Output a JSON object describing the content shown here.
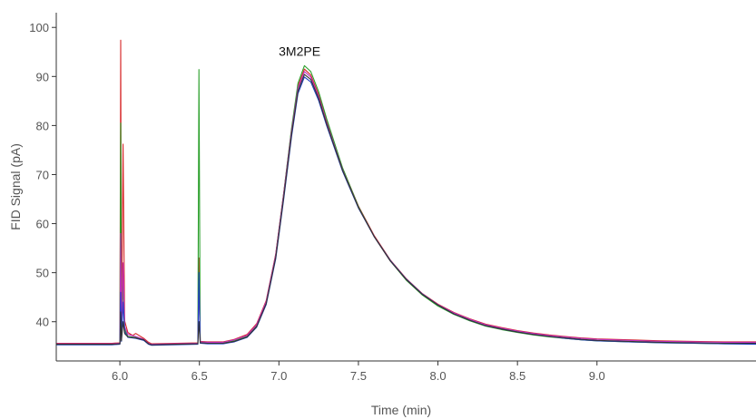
{
  "chart_data": {
    "type": "line",
    "title": "",
    "xlabel": "Time (min)",
    "ylabel": "FID Signal (pA)",
    "xlim": [
      5.6,
      10.0
    ],
    "ylim": [
      32.0,
      103.0
    ],
    "x_ticks": [
      {
        "value": 6.0,
        "label": "6.0"
      },
      {
        "value": 6.5,
        "label": "6.5"
      },
      {
        "value": 7.0,
        "label": "7.0"
      },
      {
        "value": 7.5,
        "label": "7.5"
      },
      {
        "value": 8.0,
        "label": "8.0"
      },
      {
        "value": 8.5,
        "label": "8.5"
      },
      {
        "value": 9.0,
        "label": "9.0"
      }
    ],
    "y_ticks": [
      {
        "value": 40,
        "label": "40"
      },
      {
        "value": 50,
        "label": "50"
      },
      {
        "value": 60,
        "label": "60"
      },
      {
        "value": 70,
        "label": "70"
      },
      {
        "value": 80,
        "label": "80"
      },
      {
        "value": 90,
        "label": "90"
      },
      {
        "value": 100,
        "label": "100"
      }
    ],
    "grid": false,
    "annotations": [
      {
        "text": "3M2PE",
        "x": 7.13,
        "y": 94.2
      }
    ],
    "series": [
      {
        "color": "#d62728",
        "values": [
          [
            5.6,
            35.6
          ],
          [
            5.95,
            35.6
          ],
          [
            6.0,
            35.7
          ],
          [
            6.005,
            97.4
          ],
          [
            6.01,
            36.5
          ],
          [
            6.02,
            76.2
          ],
          [
            6.03,
            40.2
          ],
          [
            6.05,
            37.8
          ],
          [
            6.08,
            37.2
          ],
          [
            6.1,
            37.6
          ],
          [
            6.15,
            36.6
          ],
          [
            6.18,
            35.8
          ],
          [
            6.2,
            35.5
          ],
          [
            6.49,
            35.7
          ],
          [
            6.497,
            53.0
          ],
          [
            6.505,
            36.0
          ],
          [
            6.55,
            35.9
          ],
          [
            6.65,
            35.9
          ],
          [
            6.72,
            36.4
          ],
          [
            6.8,
            37.4
          ],
          [
            6.86,
            39.6
          ],
          [
            6.92,
            44.3
          ],
          [
            6.98,
            53.8
          ],
          [
            7.03,
            66.2
          ],
          [
            7.08,
            79.2
          ],
          [
            7.12,
            88.0
          ],
          [
            7.16,
            91.5
          ],
          [
            7.2,
            90.3
          ],
          [
            7.25,
            86.3
          ],
          [
            7.3,
            81.0
          ],
          [
            7.4,
            71.3
          ],
          [
            7.5,
            63.6
          ],
          [
            7.6,
            57.5
          ],
          [
            7.7,
            52.6
          ],
          [
            7.8,
            48.8
          ],
          [
            7.9,
            45.8
          ],
          [
            8.0,
            43.6
          ],
          [
            8.1,
            41.9
          ],
          [
            8.2,
            40.6
          ],
          [
            8.3,
            39.5
          ],
          [
            8.4,
            38.8
          ],
          [
            8.5,
            38.2
          ],
          [
            8.6,
            37.7
          ],
          [
            8.7,
            37.3
          ],
          [
            8.8,
            37.0
          ],
          [
            8.9,
            36.7
          ],
          [
            9.0,
            36.5
          ],
          [
            9.2,
            36.3
          ],
          [
            9.4,
            36.1
          ],
          [
            9.6,
            36.0
          ],
          [
            9.8,
            35.9
          ],
          [
            10.0,
            35.9
          ]
        ]
      },
      {
        "color": "#2ca02c",
        "values": [
          [
            5.6,
            35.4
          ],
          [
            5.95,
            35.4
          ],
          [
            6.0,
            35.5
          ],
          [
            6.005,
            80.5
          ],
          [
            6.01,
            36.2
          ],
          [
            6.02,
            48.0
          ],
          [
            6.03,
            38.5
          ],
          [
            6.05,
            37.0
          ],
          [
            6.1,
            36.8
          ],
          [
            6.15,
            36.3
          ],
          [
            6.18,
            35.5
          ],
          [
            6.2,
            35.3
          ],
          [
            6.49,
            35.5
          ],
          [
            6.497,
            91.4
          ],
          [
            6.505,
            35.8
          ],
          [
            6.55,
            35.7
          ],
          [
            6.65,
            35.7
          ],
          [
            6.72,
            36.1
          ],
          [
            6.8,
            37.0
          ],
          [
            6.86,
            39.2
          ],
          [
            6.92,
            44.0
          ],
          [
            6.98,
            53.6
          ],
          [
            7.03,
            66.2
          ],
          [
            7.08,
            79.5
          ],
          [
            7.12,
            88.6
          ],
          [
            7.16,
            92.2
          ],
          [
            7.2,
            91.0
          ],
          [
            7.25,
            86.9
          ],
          [
            7.3,
            81.4
          ],
          [
            7.4,
            71.4
          ],
          [
            7.5,
            63.5
          ],
          [
            7.6,
            57.3
          ],
          [
            7.7,
            52.4
          ],
          [
            7.8,
            48.5
          ],
          [
            7.9,
            45.5
          ],
          [
            8.0,
            43.2
          ],
          [
            8.1,
            41.5
          ],
          [
            8.2,
            40.2
          ],
          [
            8.3,
            39.1
          ],
          [
            8.4,
            38.4
          ],
          [
            8.5,
            37.8
          ],
          [
            8.6,
            37.3
          ],
          [
            8.7,
            36.9
          ],
          [
            8.8,
            36.6
          ],
          [
            8.9,
            36.3
          ],
          [
            9.0,
            36.1
          ],
          [
            9.2,
            35.9
          ],
          [
            9.4,
            35.7
          ],
          [
            9.6,
            35.6
          ],
          [
            9.8,
            35.5
          ],
          [
            10.0,
            35.5
          ]
        ]
      },
      {
        "color": "#c030c0",
        "values": [
          [
            5.6,
            35.5
          ],
          [
            5.95,
            35.5
          ],
          [
            6.0,
            35.6
          ],
          [
            6.005,
            58.0
          ],
          [
            6.01,
            36.3
          ],
          [
            6.02,
            52.0
          ],
          [
            6.03,
            39.0
          ],
          [
            6.05,
            37.4
          ],
          [
            6.1,
            37.0
          ],
          [
            6.15,
            36.4
          ],
          [
            6.18,
            35.6
          ],
          [
            6.2,
            35.4
          ],
          [
            6.49,
            35.6
          ],
          [
            6.497,
            48.0
          ],
          [
            6.505,
            35.9
          ],
          [
            6.55,
            35.8
          ],
          [
            6.65,
            35.8
          ],
          [
            6.72,
            36.3
          ],
          [
            6.8,
            37.2
          ],
          [
            6.86,
            39.4
          ],
          [
            6.92,
            44.1
          ],
          [
            6.98,
            53.6
          ],
          [
            7.03,
            66.0
          ],
          [
            7.08,
            78.9
          ],
          [
            7.12,
            87.6
          ],
          [
            7.16,
            91.0
          ],
          [
            7.2,
            89.9
          ],
          [
            7.25,
            85.9
          ],
          [
            7.3,
            80.6
          ],
          [
            7.4,
            71.0
          ],
          [
            7.5,
            63.3
          ],
          [
            7.6,
            57.3
          ],
          [
            7.7,
            52.4
          ],
          [
            7.8,
            48.7
          ],
          [
            7.9,
            45.7
          ],
          [
            8.0,
            43.5
          ],
          [
            8.1,
            41.8
          ],
          [
            8.2,
            40.5
          ],
          [
            8.3,
            39.4
          ],
          [
            8.4,
            38.7
          ],
          [
            8.5,
            38.1
          ],
          [
            8.6,
            37.6
          ],
          [
            8.7,
            37.2
          ],
          [
            8.8,
            36.9
          ],
          [
            8.9,
            36.6
          ],
          [
            9.0,
            36.4
          ],
          [
            9.2,
            36.2
          ],
          [
            9.4,
            36.0
          ],
          [
            9.6,
            35.9
          ],
          [
            9.8,
            35.8
          ],
          [
            10.0,
            35.8
          ]
        ]
      },
      {
        "color": "#1f3fbf",
        "values": [
          [
            5.6,
            35.3
          ],
          [
            5.95,
            35.3
          ],
          [
            6.0,
            35.4
          ],
          [
            6.005,
            46.0
          ],
          [
            6.01,
            36.0
          ],
          [
            6.02,
            44.0
          ],
          [
            6.03,
            38.0
          ],
          [
            6.05,
            36.8
          ],
          [
            6.1,
            36.6
          ],
          [
            6.15,
            36.2
          ],
          [
            6.18,
            35.4
          ],
          [
            6.2,
            35.2
          ],
          [
            6.49,
            35.4
          ],
          [
            6.497,
            50.0
          ],
          [
            6.505,
            35.6
          ],
          [
            6.55,
            35.5
          ],
          [
            6.65,
            35.5
          ],
          [
            6.72,
            35.9
          ],
          [
            6.8,
            36.8
          ],
          [
            6.86,
            38.9
          ],
          [
            6.92,
            43.5
          ],
          [
            6.98,
            52.8
          ],
          [
            7.03,
            65.0
          ],
          [
            7.08,
            77.8
          ],
          [
            7.12,
            86.5
          ],
          [
            7.16,
            89.9
          ],
          [
            7.2,
            88.9
          ],
          [
            7.25,
            85.1
          ],
          [
            7.3,
            80.0
          ],
          [
            7.4,
            70.7
          ],
          [
            7.5,
            63.2
          ],
          [
            7.6,
            57.3
          ],
          [
            7.7,
            52.5
          ],
          [
            7.8,
            48.7
          ],
          [
            7.9,
            45.7
          ],
          [
            8.0,
            43.4
          ],
          [
            8.1,
            41.6
          ],
          [
            8.2,
            40.3
          ],
          [
            8.3,
            39.2
          ],
          [
            8.4,
            38.5
          ],
          [
            8.5,
            37.9
          ],
          [
            8.6,
            37.4
          ],
          [
            8.7,
            37.0
          ],
          [
            8.8,
            36.6
          ],
          [
            8.9,
            36.3
          ],
          [
            9.0,
            36.1
          ],
          [
            9.2,
            35.9
          ],
          [
            9.4,
            35.7
          ],
          [
            9.6,
            35.6
          ],
          [
            9.8,
            35.5
          ],
          [
            10.0,
            35.4
          ]
        ]
      },
      {
        "color": "#333333",
        "values": [
          [
            5.6,
            35.4
          ],
          [
            5.95,
            35.4
          ],
          [
            6.0,
            35.5
          ],
          [
            6.005,
            42.0
          ],
          [
            6.01,
            36.1
          ],
          [
            6.02,
            40.0
          ],
          [
            6.03,
            37.6
          ],
          [
            6.05,
            36.9
          ],
          [
            6.1,
            36.7
          ],
          [
            6.15,
            36.3
          ],
          [
            6.18,
            35.5
          ],
          [
            6.2,
            35.3
          ],
          [
            6.49,
            35.5
          ],
          [
            6.497,
            40.0
          ],
          [
            6.505,
            35.7
          ],
          [
            6.55,
            35.6
          ],
          [
            6.65,
            35.6
          ],
          [
            6.72,
            36.0
          ],
          [
            6.8,
            36.9
          ],
          [
            6.86,
            39.0
          ],
          [
            6.92,
            43.7
          ],
          [
            6.98,
            53.1
          ],
          [
            7.03,
            65.4
          ],
          [
            7.08,
            78.3
          ],
          [
            7.12,
            87.0
          ],
          [
            7.16,
            90.4
          ],
          [
            7.2,
            89.4
          ],
          [
            7.25,
            85.5
          ],
          [
            7.3,
            80.3
          ],
          [
            7.4,
            70.9
          ],
          [
            7.5,
            63.3
          ],
          [
            7.6,
            57.3
          ],
          [
            7.7,
            52.4
          ],
          [
            7.8,
            48.6
          ],
          [
            7.9,
            45.6
          ],
          [
            8.0,
            43.4
          ],
          [
            8.1,
            41.6
          ],
          [
            8.2,
            40.3
          ],
          [
            8.3,
            39.2
          ],
          [
            8.4,
            38.5
          ],
          [
            8.5,
            37.9
          ],
          [
            8.6,
            37.4
          ],
          [
            8.7,
            37.0
          ],
          [
            8.8,
            36.7
          ],
          [
            8.9,
            36.4
          ],
          [
            9.0,
            36.2
          ],
          [
            9.2,
            36.0
          ],
          [
            9.4,
            35.8
          ],
          [
            9.6,
            35.7
          ],
          [
            9.8,
            35.6
          ],
          [
            10.0,
            35.6
          ]
        ]
      }
    ]
  }
}
